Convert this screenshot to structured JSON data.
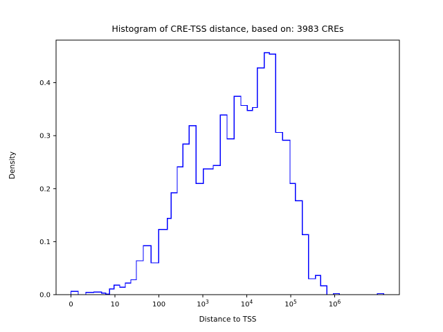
{
  "figure": {
    "title": "Histogram of CRE-TSS distance, based on: 3983 CREs",
    "xlabel": "Distance to TSS",
    "ylabel": "Density"
  },
  "colors": {
    "line": "#0000ff",
    "axis": "#000000",
    "background": "#ffffff",
    "text": "#000000"
  },
  "chart_data": {
    "type": "histogram-step",
    "title": "Histogram of CRE-TSS distance, based on: 3983 CREs",
    "xlabel": "Distance to TSS",
    "ylabel": "Density",
    "x_scale": "symlog",
    "grid": false,
    "legend": null,
    "x_axis": {
      "log_min": -0.339,
      "log_max": 7.472,
      "ticks": [
        {
          "label": "0",
          "exp": null,
          "log": 0
        },
        {
          "label": "10",
          "exp": null,
          "log": 1
        },
        {
          "label": "100",
          "exp": null,
          "log": 2
        },
        {
          "label": "10",
          "exp": "3",
          "log": 3
        },
        {
          "label": "10",
          "exp": "4",
          "log": 4
        },
        {
          "label": "10",
          "exp": "5",
          "log": 5
        },
        {
          "label": "10",
          "exp": "6",
          "log": 6
        }
      ]
    },
    "y_axis": {
      "min": 0,
      "max": 0.4803,
      "ticks": [
        {
          "label": "0.0",
          "value": 0.0
        },
        {
          "label": "0.1",
          "value": 0.1
        },
        {
          "label": "0.2",
          "value": 0.2
        },
        {
          "label": "0.3",
          "value": 0.3
        },
        {
          "label": "0.4",
          "value": 0.4
        }
      ]
    },
    "bins_note": "each entry = [left_edge_distance_bp, right_edge_distance_bp, density]",
    "bins": [
      [
        1.0,
        1.46,
        0.006
      ],
      [
        1.46,
        2.18,
        0.0
      ],
      [
        2.18,
        3.31,
        0.004
      ],
      [
        3.31,
        5.0,
        0.005
      ],
      [
        5.0,
        6.2,
        0.003
      ],
      [
        6.2,
        7.5,
        0.001
      ],
      [
        7.5,
        9.6,
        0.011
      ],
      [
        9.6,
        12.9,
        0.018
      ],
      [
        12.9,
        17.2,
        0.014
      ],
      [
        17.2,
        23.0,
        0.022
      ],
      [
        23.0,
        30.8,
        0.028
      ],
      [
        30.8,
        44.2,
        0.064
      ],
      [
        44.2,
        66.8,
        0.0925
      ],
      [
        66.8,
        99.3,
        0.06
      ],
      [
        99.3,
        156,
        0.123
      ],
      [
        156,
        189,
        0.144
      ],
      [
        189,
        261,
        0.192
      ],
      [
        261,
        353,
        0.241
      ],
      [
        353,
        489,
        0.284
      ],
      [
        489,
        703,
        0.319
      ],
      [
        703,
        1020,
        0.21
      ],
      [
        1020,
        1720,
        0.237
      ],
      [
        1720,
        2480,
        0.244
      ],
      [
        2480,
        3560,
        0.339
      ],
      [
        3560,
        5120,
        0.294
      ],
      [
        5120,
        7350,
        0.374
      ],
      [
        7350,
        10200,
        0.357
      ],
      [
        10200,
        13500,
        0.3475
      ],
      [
        13500,
        17400,
        0.353
      ],
      [
        17400,
        25000,
        0.428
      ],
      [
        25000,
        32900,
        0.4565
      ],
      [
        32900,
        45500,
        0.454
      ],
      [
        45500,
        65500,
        0.306
      ],
      [
        65500,
        96400,
        0.2915
      ],
      [
        96400,
        128000,
        0.21
      ],
      [
        128000,
        183000,
        0.177
      ],
      [
        183000,
        254000,
        0.113
      ],
      [
        254000,
        365000,
        0.03
      ],
      [
        365000,
        481000,
        0.036
      ],
      [
        481000,
        667000,
        0.0165
      ],
      [
        667000,
        938000,
        0.0
      ],
      [
        938000,
        1270000,
        0.002
      ],
      [
        1270000,
        9310000,
        0.0
      ],
      [
        9310000,
        12900000,
        0.002
      ]
    ]
  }
}
